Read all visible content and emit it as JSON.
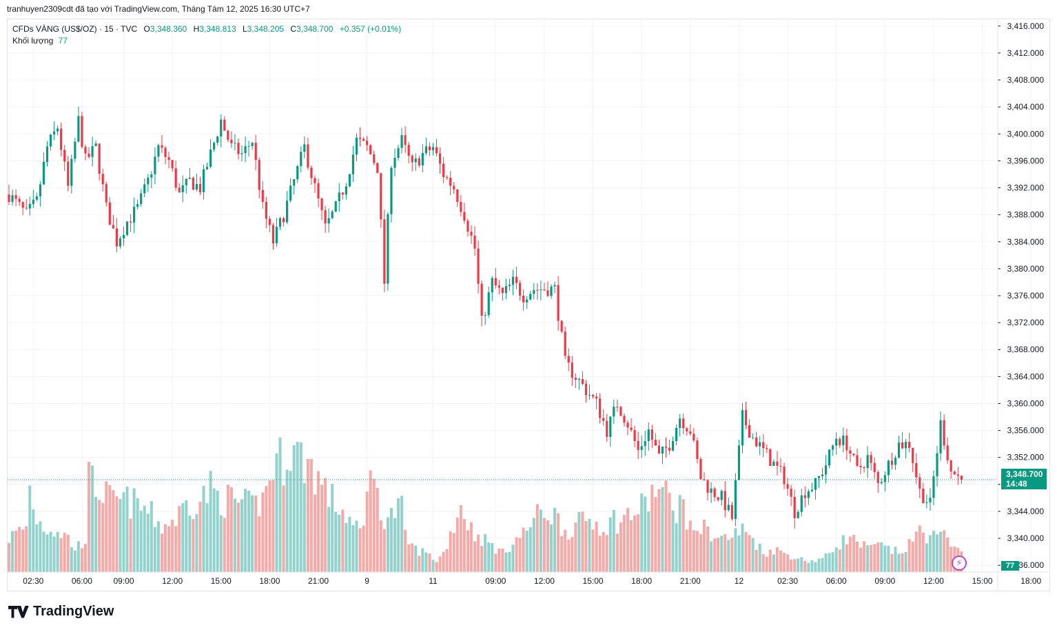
{
  "header": {
    "author_line": "tranhuyen2309cdt đã tạo với TradingView.com, Tháng Tám 12, 2025 16:30 UTC+7"
  },
  "legend": {
    "symbol": "CFDs VÀNG (US$/OZ) · 15 · TVC",
    "o_label": "O",
    "o_value": "3,348.360",
    "h_label": "H",
    "h_value": "3,348.813",
    "l_label": "L",
    "l_value": "3,348.205",
    "c_label": "C",
    "c_value": "3,348.700",
    "change": "+0.357 (+0.01%)",
    "volume_label": "Khối lượng",
    "volume_value": "77"
  },
  "badges": {
    "price": "3,348.700",
    "countdown": "14:48",
    "volume": "77"
  },
  "brand": {
    "name": "TradingView"
  },
  "colors": {
    "up": "#089981",
    "down": "#f23645",
    "vol_up": "#92d2cc",
    "vol_down": "#f7a9a7",
    "grid": "#f0f3fa"
  },
  "chart_data": {
    "type": "candlestick",
    "y_ticks": [
      "3,416.000",
      "3,412.000",
      "3,408.000",
      "3,404.000",
      "3,400.000",
      "3,396.000",
      "3,392.000",
      "3,388.000",
      "3,384.000",
      "3,380.000",
      "3,376.000",
      "3,372.000",
      "3,368.000",
      "3,364.000",
      "3,360.000",
      "3,356.000",
      "3,352.000",
      "3,348.000",
      "3,344.000",
      "3,340.000",
      "3,336.000"
    ],
    "ylim": [
      3335,
      3417
    ],
    "x_ticks": [
      {
        "label": "02:30",
        "index": 7
      },
      {
        "label": "06:00",
        "index": 21
      },
      {
        "label": "09:00",
        "index": 33
      },
      {
        "label": "12:00",
        "index": 47
      },
      {
        "label": "15:00",
        "index": 61
      },
      {
        "label": "18:00",
        "index": 75
      },
      {
        "label": "21:00",
        "index": 89
      },
      {
        "label": "9",
        "index": 103
      },
      {
        "label": "11",
        "index": 122
      },
      {
        "label": "09:00",
        "index": 140
      },
      {
        "label": "12:00",
        "index": 154
      },
      {
        "label": "15:00",
        "index": 168
      },
      {
        "label": "18:00",
        "index": 182
      },
      {
        "label": "21:00",
        "index": 196
      },
      {
        "label": "12",
        "index": 210
      },
      {
        "label": "02:30",
        "index": 224
      },
      {
        "label": "06:00",
        "index": 238
      },
      {
        "label": "09:00",
        "index": 252
      },
      {
        "label": "12:00",
        "index": 266
      },
      {
        "label": "15:00",
        "index": 280
      },
      {
        "label": "18:00",
        "index": 294
      }
    ],
    "last_price": 3348.7,
    "anchors": [
      [
        0,
        3391
      ],
      [
        5,
        3388
      ],
      [
        8,
        3390
      ],
      [
        11,
        3398
      ],
      [
        14,
        3401
      ],
      [
        17,
        3392
      ],
      [
        20,
        3402
      ],
      [
        22,
        3396
      ],
      [
        25,
        3398
      ],
      [
        28,
        3389
      ],
      [
        31,
        3384
      ],
      [
        34,
        3387
      ],
      [
        37,
        3389
      ],
      [
        40,
        3393
      ],
      [
        43,
        3398
      ],
      [
        46,
        3396
      ],
      [
        49,
        3391
      ],
      [
        52,
        3393
      ],
      [
        55,
        3392
      ],
      [
        58,
        3397
      ],
      [
        61,
        3402
      ],
      [
        64,
        3398
      ],
      [
        67,
        3397
      ],
      [
        70,
        3399
      ],
      [
        73,
        3389
      ],
      [
        76,
        3384
      ],
      [
        79,
        3388
      ],
      [
        82,
        3393
      ],
      [
        85,
        3398
      ],
      [
        88,
        3392
      ],
      [
        91,
        3386
      ],
      [
        94,
        3389
      ],
      [
        97,
        3393
      ],
      [
        100,
        3399
      ],
      [
        103,
        3398
      ],
      [
        106,
        3395
      ],
      [
        108,
        3378
      ],
      [
        110,
        3396
      ],
      [
        113,
        3399
      ],
      [
        116,
        3395
      ],
      [
        119,
        3397
      ],
      [
        122,
        3398
      ],
      [
        125,
        3394
      ],
      [
        128,
        3392
      ],
      [
        131,
        3388
      ],
      [
        134,
        3383
      ],
      [
        136,
        3372
      ],
      [
        139,
        3378
      ],
      [
        142,
        3376
      ],
      [
        145,
        3378
      ],
      [
        148,
        3376
      ],
      [
        151,
        3377
      ],
      [
        154,
        3377
      ],
      [
        157,
        3377
      ],
      [
        160,
        3366
      ],
      [
        163,
        3364
      ],
      [
        166,
        3362
      ],
      [
        169,
        3360
      ],
      [
        172,
        3356
      ],
      [
        175,
        3360
      ],
      [
        178,
        3357
      ],
      [
        181,
        3353
      ],
      [
        184,
        3356
      ],
      [
        187,
        3352
      ],
      [
        190,
        3354
      ],
      [
        193,
        3358
      ],
      [
        196,
        3356
      ],
      [
        199,
        3349
      ],
      [
        202,
        3347
      ],
      [
        205,
        3346
      ],
      [
        208,
        3343
      ],
      [
        211,
        3358
      ],
      [
        214,
        3355
      ],
      [
        217,
        3353
      ],
      [
        220,
        3351
      ],
      [
        223,
        3349
      ],
      [
        226,
        3344
      ],
      [
        229,
        3347
      ],
      [
        232,
        3348
      ],
      [
        235,
        3351
      ],
      [
        238,
        3355
      ],
      [
        241,
        3354
      ],
      [
        244,
        3350
      ],
      [
        247,
        3352
      ],
      [
        250,
        3348
      ],
      [
        253,
        3351
      ],
      [
        256,
        3354
      ],
      [
        259,
        3354
      ],
      [
        262,
        3347
      ],
      [
        265,
        3345
      ],
      [
        268,
        3357
      ],
      [
        271,
        3350
      ],
      [
        274,
        3348.7
      ]
    ],
    "volume_anchors": [
      [
        0,
        45
      ],
      [
        5,
        60
      ],
      [
        6,
        110
      ],
      [
        8,
        70
      ],
      [
        10,
        60
      ],
      [
        14,
        55
      ],
      [
        17,
        45
      ],
      [
        19,
        30
      ],
      [
        22,
        45
      ],
      [
        23,
        120
      ],
      [
        26,
        110
      ],
      [
        30,
        90
      ],
      [
        33,
        95
      ],
      [
        36,
        90
      ],
      [
        40,
        80
      ],
      [
        44,
        60
      ],
      [
        48,
        70
      ],
      [
        51,
        90
      ],
      [
        55,
        95
      ],
      [
        58,
        110
      ],
      [
        61,
        95
      ],
      [
        64,
        95
      ],
      [
        67,
        90
      ],
      [
        70,
        85
      ],
      [
        73,
        95
      ],
      [
        76,
        140
      ],
      [
        79,
        150
      ],
      [
        81,
        165
      ],
      [
        84,
        150
      ],
      [
        87,
        140
      ],
      [
        90,
        115
      ],
      [
        93,
        95
      ],
      [
        97,
        75
      ],
      [
        100,
        55
      ],
      [
        102,
        55
      ],
      [
        104,
        170
      ],
      [
        105,
        115
      ],
      [
        107,
        75
      ],
      [
        110,
        75
      ],
      [
        113,
        85
      ],
      [
        114,
        45
      ],
      [
        117,
        30
      ],
      [
        120,
        25
      ],
      [
        123,
        15
      ],
      [
        125,
        25
      ],
      [
        127,
        50
      ],
      [
        130,
        90
      ],
      [
        132,
        65
      ],
      [
        134,
        50
      ],
      [
        136,
        45
      ],
      [
        139,
        35
      ],
      [
        142,
        25
      ],
      [
        145,
        40
      ],
      [
        148,
        50
      ],
      [
        151,
        70
      ],
      [
        154,
        80
      ],
      [
        157,
        75
      ],
      [
        160,
        55
      ],
      [
        163,
        60
      ],
      [
        166,
        70
      ],
      [
        169,
        65
      ],
      [
        172,
        60
      ],
      [
        174,
        70
      ],
      [
        176,
        65
      ],
      [
        178,
        75
      ],
      [
        181,
        80
      ],
      [
        184,
        95
      ],
      [
        186,
        110
      ],
      [
        189,
        100
      ],
      [
        192,
        85
      ],
      [
        194,
        90
      ],
      [
        196,
        55
      ],
      [
        198,
        60
      ],
      [
        201,
        55
      ],
      [
        204,
        45
      ],
      [
        207,
        45
      ],
      [
        209,
        50
      ],
      [
        211,
        55
      ],
      [
        214,
        45
      ],
      [
        217,
        25
      ],
      [
        220,
        30
      ],
      [
        223,
        25
      ],
      [
        226,
        20
      ],
      [
        229,
        15
      ],
      [
        232,
        15
      ],
      [
        235,
        20
      ],
      [
        238,
        35
      ],
      [
        241,
        45
      ],
      [
        244,
        40
      ],
      [
        247,
        30
      ],
      [
        250,
        35
      ],
      [
        253,
        30
      ],
      [
        256,
        25
      ],
      [
        259,
        35
      ],
      [
        262,
        55
      ],
      [
        264,
        50
      ],
      [
        267,
        45
      ],
      [
        270,
        45
      ],
      [
        274,
        35
      ],
      [
        276,
        20
      ]
    ],
    "n_candles": 275
  }
}
